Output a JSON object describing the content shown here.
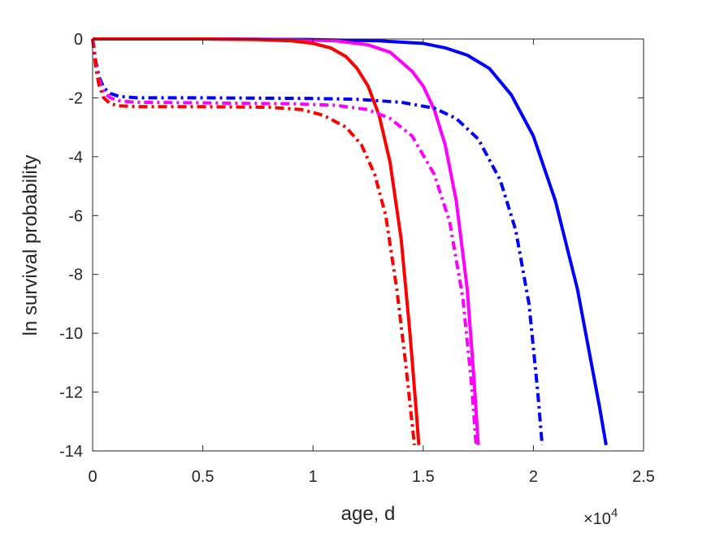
{
  "chart_data": {
    "type": "line",
    "title": "",
    "xlabel": "age, d",
    "ylabel": "ln survival probability",
    "x_exponent_label": "×10",
    "x_exponent_power": "4",
    "xlim": [
      0,
      25000
    ],
    "ylim": [
      -14,
      0
    ],
    "x_ticks": [
      0,
      5000,
      10000,
      15000,
      20000,
      25000
    ],
    "x_tick_labels": [
      "0",
      "0.5",
      "1",
      "1.5",
      "2",
      "2.5"
    ],
    "y_ticks": [
      0,
      -2,
      -4,
      -6,
      -8,
      -10,
      -12,
      -14
    ],
    "y_tick_labels": [
      "0",
      "-2",
      "-4",
      "-6",
      "-8",
      "-10",
      "-12",
      "-14"
    ],
    "grid": false,
    "legend": "none",
    "series": [
      {
        "color": "#0000ff",
        "line_style": "solid",
        "points": [
          [
            0,
            0
          ],
          [
            5000,
            0
          ],
          [
            10000,
            -0.02
          ],
          [
            13000,
            -0.06
          ],
          [
            15000,
            -0.15
          ],
          [
            16000,
            -0.3
          ],
          [
            17000,
            -0.55
          ],
          [
            18000,
            -1.0
          ],
          [
            19000,
            -1.9
          ],
          [
            20000,
            -3.3
          ],
          [
            21000,
            -5.5
          ],
          [
            22000,
            -8.5
          ],
          [
            22500,
            -10.5
          ],
          [
            23000,
            -12.5
          ],
          [
            23300,
            -13.8
          ]
        ]
      },
      {
        "color": "#ff00ff",
        "line_style": "solid",
        "points": [
          [
            0,
            0
          ],
          [
            5000,
            0
          ],
          [
            9000,
            -0.02
          ],
          [
            11000,
            -0.06
          ],
          [
            12500,
            -0.2
          ],
          [
            13500,
            -0.45
          ],
          [
            14500,
            -1.1
          ],
          [
            15000,
            -1.6
          ],
          [
            15500,
            -2.4
          ],
          [
            16000,
            -3.6
          ],
          [
            16500,
            -5.5
          ],
          [
            17000,
            -8.5
          ],
          [
            17300,
            -11.5
          ],
          [
            17500,
            -13.8
          ]
        ]
      },
      {
        "color": "#ff0000",
        "line_style": "solid",
        "points": [
          [
            0,
            0
          ],
          [
            5000,
            0
          ],
          [
            7500,
            -0.02
          ],
          [
            9000,
            -0.06
          ],
          [
            10000,
            -0.15
          ],
          [
            10800,
            -0.3
          ],
          [
            11500,
            -0.6
          ],
          [
            12000,
            -1.0
          ],
          [
            12500,
            -1.6
          ],
          [
            13000,
            -2.6
          ],
          [
            13500,
            -4.2
          ],
          [
            14000,
            -6.8
          ],
          [
            14400,
            -10.0
          ],
          [
            14700,
            -12.8
          ],
          [
            14800,
            -13.8
          ]
        ]
      },
      {
        "color": "#0000ff",
        "line_style": "dashdot",
        "points": [
          [
            0,
            0
          ],
          [
            150,
            -0.8
          ],
          [
            300,
            -1.3
          ],
          [
            500,
            -1.65
          ],
          [
            800,
            -1.85
          ],
          [
            1200,
            -1.95
          ],
          [
            2000,
            -2.0
          ],
          [
            5000,
            -2.0
          ],
          [
            10000,
            -2.02
          ],
          [
            12000,
            -2.05
          ],
          [
            14000,
            -2.15
          ],
          [
            15500,
            -2.35
          ],
          [
            16500,
            -2.7
          ],
          [
            17500,
            -3.4
          ],
          [
            18500,
            -4.8
          ],
          [
            19200,
            -6.5
          ],
          [
            19800,
            -9.0
          ],
          [
            20200,
            -12.0
          ],
          [
            20400,
            -13.8
          ]
        ]
      },
      {
        "color": "#ff00ff",
        "line_style": "dashdot",
        "points": [
          [
            0,
            0
          ],
          [
            150,
            -0.9
          ],
          [
            300,
            -1.4
          ],
          [
            500,
            -1.8
          ],
          [
            800,
            -2.0
          ],
          [
            1200,
            -2.1
          ],
          [
            2000,
            -2.15
          ],
          [
            5000,
            -2.17
          ],
          [
            9000,
            -2.2
          ],
          [
            11000,
            -2.25
          ],
          [
            12500,
            -2.4
          ],
          [
            13500,
            -2.7
          ],
          [
            14500,
            -3.3
          ],
          [
            15500,
            -4.6
          ],
          [
            16200,
            -6.2
          ],
          [
            16800,
            -8.8
          ],
          [
            17200,
            -11.8
          ],
          [
            17400,
            -13.8
          ]
        ]
      },
      {
        "color": "#ff0000",
        "line_style": "dashdot",
        "points": [
          [
            0,
            0
          ],
          [
            150,
            -1.0
          ],
          [
            300,
            -1.6
          ],
          [
            500,
            -2.0
          ],
          [
            800,
            -2.2
          ],
          [
            1200,
            -2.27
          ],
          [
            2000,
            -2.3
          ],
          [
            5000,
            -2.3
          ],
          [
            8000,
            -2.32
          ],
          [
            9500,
            -2.4
          ],
          [
            10500,
            -2.6
          ],
          [
            11500,
            -3.0
          ],
          [
            12200,
            -3.6
          ],
          [
            12800,
            -4.6
          ],
          [
            13300,
            -6.0
          ],
          [
            13800,
            -8.5
          ],
          [
            14200,
            -11.0
          ],
          [
            14600,
            -13.8
          ]
        ]
      }
    ]
  }
}
